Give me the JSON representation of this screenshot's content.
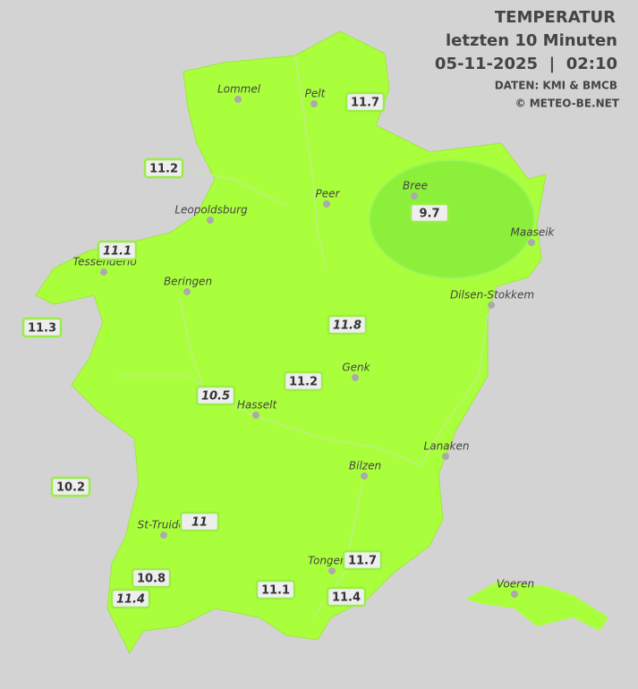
{
  "header": {
    "title": "TEMPERATUR",
    "subtitle": "letzten 10 Minuten",
    "datetime": "05-11-2025  |  02:10",
    "source": "DATEN: KMI & BMCB",
    "credit": "© METEO-BE.NET"
  },
  "cities": [
    "Lommel",
    "Pelt",
    "Peer",
    "Bree",
    "Leopoldsburg",
    "Maaseik",
    "Tessenderlo",
    "Beringen",
    "Dilsen-Stokkem",
    "Genk",
    "Hasselt",
    "Lanaken",
    "Bilzen",
    "St-Truiden",
    "Tongeren",
    "Voeren"
  ],
  "stations": [
    {
      "value": 11.7,
      "italic": false
    },
    {
      "value": 11.2,
      "italic": false
    },
    {
      "value": 9.7,
      "italic": false
    },
    {
      "value": 11.1,
      "italic": true
    },
    {
      "value": 11.3,
      "italic": false
    },
    {
      "value": 11.8,
      "italic": true
    },
    {
      "value": 11.2,
      "italic": false
    },
    {
      "value": 10.5,
      "italic": true
    },
    {
      "value": 10.2,
      "italic": false
    },
    {
      "value": 11.0,
      "italic": true
    },
    {
      "value": 10.8,
      "italic": false
    },
    {
      "value": 11.4,
      "italic": true
    },
    {
      "value": 11.1,
      "italic": false
    },
    {
      "value": 11.7,
      "italic": false
    },
    {
      "value": 11.4,
      "italic": false
    }
  ]
}
